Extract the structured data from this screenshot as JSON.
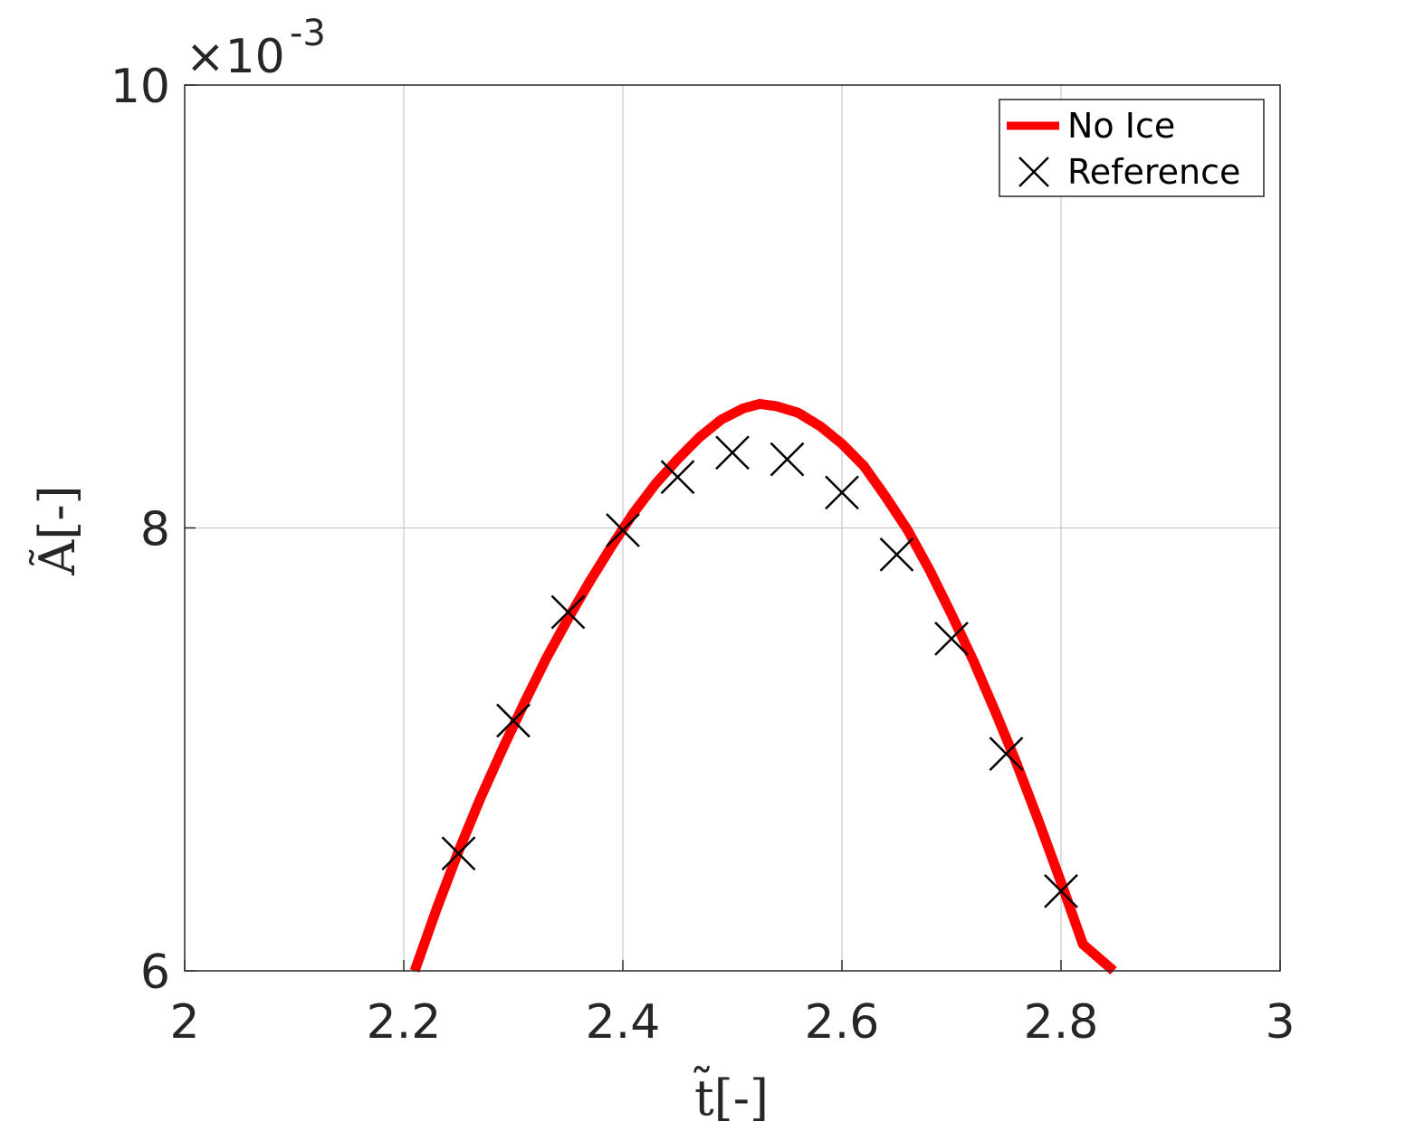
{
  "chart_data": {
    "type": "line",
    "xlabel": "t̃[-]",
    "ylabel": "Ã[-]",
    "y_exponent_base": "×10",
    "y_exponent_power": "-3",
    "xlim": [
      2,
      3
    ],
    "ylim": [
      6,
      10
    ],
    "x_ticks": [
      2,
      2.2,
      2.4,
      2.6,
      2.8,
      3
    ],
    "x_tick_labels": [
      "2",
      "2.2",
      "2.4",
      "2.6",
      "2.8",
      "3"
    ],
    "y_ticks": [
      6,
      8,
      10
    ],
    "y_tick_labels": [
      "6",
      "8",
      "10"
    ],
    "grid": true,
    "legend_position": "top-right",
    "series": [
      {
        "name": "No Ice",
        "style": "line",
        "color": "#ff0000",
        "curve": {
          "x": [
            2.21,
            2.23,
            2.25,
            2.27,
            2.29,
            2.31,
            2.33,
            2.35,
            2.37,
            2.39,
            2.41,
            2.43,
            2.45,
            2.47,
            2.49,
            2.51,
            2.525,
            2.54,
            2.56,
            2.58,
            2.6,
            2.62,
            2.64,
            2.66,
            2.68,
            2.7,
            2.72,
            2.74,
            2.76,
            2.78,
            2.8,
            2.82,
            2.848
          ],
          "y": [
            6.0,
            6.28,
            6.54,
            6.78,
            7.0,
            7.21,
            7.41,
            7.59,
            7.76,
            7.92,
            8.07,
            8.2,
            8.31,
            8.41,
            8.49,
            8.54,
            8.56,
            8.55,
            8.52,
            8.46,
            8.38,
            8.28,
            8.14,
            7.99,
            7.81,
            7.61,
            7.4,
            7.17,
            6.93,
            6.67,
            6.4,
            6.12,
            6.0
          ]
        }
      },
      {
        "name": "Reference",
        "style": "marker-x",
        "color": "#000000",
        "x": [
          2.25,
          2.3,
          2.35,
          2.4,
          2.45,
          2.5,
          2.55,
          2.6,
          2.65,
          2.7,
          2.75,
          2.8
        ],
        "y": [
          6.53,
          7.13,
          7.62,
          7.99,
          8.23,
          8.34,
          8.31,
          8.16,
          7.88,
          7.5,
          6.98,
          6.36
        ]
      }
    ]
  }
}
